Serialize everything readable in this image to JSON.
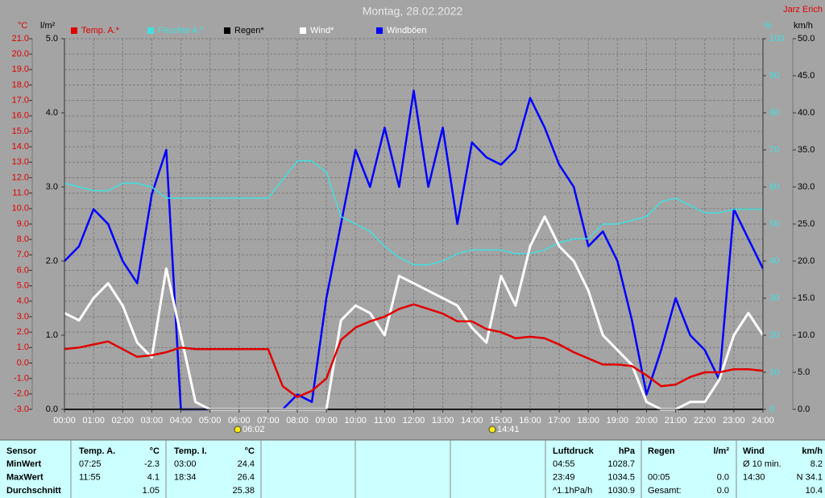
{
  "chart_data": {
    "type": "line",
    "title": "Montag, 28.02.2022",
    "author": "Jarz Erich",
    "units": {
      "y": "°C",
      "y2": "l/m²",
      "y3": "%",
      "y4": "km/h"
    },
    "annotations": [
      "06:02",
      "14:41"
    ],
    "grid": true,
    "x": [
      0,
      0.5,
      1,
      1.5,
      2,
      2.5,
      3,
      3.5,
      4,
      4.5,
      5,
      5.5,
      6,
      6.5,
      7,
      7.5,
      8,
      8.5,
      9,
      9.5,
      10,
      10.5,
      11,
      11.5,
      12,
      12.5,
      13,
      13.5,
      14,
      14.5,
      15,
      15.5,
      16,
      16.5,
      17,
      17.5,
      18,
      18.5,
      19,
      19.5,
      20,
      20.5,
      21,
      21.5,
      22,
      22.5,
      23,
      23.5,
      24
    ],
    "xlim": [
      0,
      24
    ],
    "xticks": [
      {
        "value": 0,
        "label": "00:00"
      },
      {
        "value": 1,
        "label": "01:00"
      },
      {
        "value": 2,
        "label": "02:00"
      },
      {
        "value": 3,
        "label": "03:00"
      },
      {
        "value": 4,
        "label": "04:00"
      },
      {
        "value": 5,
        "label": "05:00"
      },
      {
        "value": 6,
        "label": "06:00"
      },
      {
        "value": 7,
        "label": "07:00"
      },
      {
        "value": 8,
        "label": "08:00"
      },
      {
        "value": 9,
        "label": "09:00"
      },
      {
        "value": 10,
        "label": "10:00"
      },
      {
        "value": 11,
        "label": "11:00"
      },
      {
        "value": 12,
        "label": "12:00"
      },
      {
        "value": 13,
        "label": "13:00"
      },
      {
        "value": 14,
        "label": "14:00"
      },
      {
        "value": 15,
        "label": "15:00"
      },
      {
        "value": 16,
        "label": "16:00"
      },
      {
        "value": 17,
        "label": "17:00"
      },
      {
        "value": 18,
        "label": "18:00"
      },
      {
        "value": 19,
        "label": "19:00"
      },
      {
        "value": 20,
        "label": "20:00"
      },
      {
        "value": 21,
        "label": "21:00"
      },
      {
        "value": 22,
        "label": "22:00"
      },
      {
        "value": 23,
        "label": "23:00"
      },
      {
        "value": 24,
        "label": "24:00"
      }
    ],
    "ylim": [
      -3,
      21
    ],
    "yticks": [
      {
        "value": -3,
        "label": "-3.0"
      },
      {
        "value": -2,
        "label": "-2.0"
      },
      {
        "value": -1,
        "label": "-1.0"
      },
      {
        "value": 0,
        "label": "0.0"
      },
      {
        "value": 1,
        "label": "1.0"
      },
      {
        "value": 2,
        "label": "2.0"
      },
      {
        "value": 3,
        "label": "3.0"
      },
      {
        "value": 4,
        "label": "4.0"
      },
      {
        "value": 5,
        "label": "5.0"
      },
      {
        "value": 6,
        "label": "6.0"
      },
      {
        "value": 7,
        "label": "7.0"
      },
      {
        "value": 8,
        "label": "8.0"
      },
      {
        "value": 9,
        "label": "9.0"
      },
      {
        "value": 10,
        "label": "10.0"
      },
      {
        "value": 11,
        "label": "11.0"
      },
      {
        "value": 12,
        "label": "12.0"
      },
      {
        "value": 13,
        "label": "13.0"
      },
      {
        "value": 14,
        "label": "14.0"
      },
      {
        "value": 15,
        "label": "15.0"
      },
      {
        "value": 16,
        "label": "16.0"
      },
      {
        "value": 17,
        "label": "17.0"
      },
      {
        "value": 18,
        "label": "18.0"
      },
      {
        "value": 19,
        "label": "19.0"
      },
      {
        "value": 20,
        "label": "20.0"
      },
      {
        "value": 21,
        "label": "21.0"
      }
    ],
    "y2lim": [
      0,
      5
    ],
    "y2ticks": [
      {
        "value": 0,
        "label": "0.0"
      },
      {
        "value": 1,
        "label": "1.0"
      },
      {
        "value": 2,
        "label": "2.0"
      },
      {
        "value": 3,
        "label": "3.0"
      },
      {
        "value": 4,
        "label": "4.0"
      },
      {
        "value": 5,
        "label": "5.0"
      }
    ],
    "y3lim": [
      0,
      100
    ],
    "y3ticks": [
      0,
      10,
      20,
      30,
      40,
      50,
      60,
      70,
      80,
      90,
      100
    ],
    "y4lim": [
      0,
      50
    ],
    "y4ticks": [
      {
        "value": 0,
        "label": "0.0"
      },
      {
        "value": 5,
        "label": "5.0"
      },
      {
        "value": 10,
        "label": "10.0"
      },
      {
        "value": 15,
        "label": "15.0"
      },
      {
        "value": 20,
        "label": "20.0"
      },
      {
        "value": 25,
        "label": "25.0"
      },
      {
        "value": 30,
        "label": "30.0"
      },
      {
        "value": 35,
        "label": "35.0"
      },
      {
        "value": 40,
        "label": "40.0"
      },
      {
        "value": 45,
        "label": "45.0"
      },
      {
        "value": 50,
        "label": "50.0"
      }
    ],
    "series": [
      {
        "name": "Temp. A.*",
        "color": "#e00000",
        "axis": "y",
        "values": [
          0.9,
          1.0,
          1.2,
          1.4,
          0.9,
          0.4,
          0.5,
          0.7,
          1.0,
          0.9,
          0.9,
          0.9,
          0.9,
          0.9,
          0.9,
          -1.5,
          -2.2,
          -1.8,
          -1.0,
          1.5,
          2.3,
          2.7,
          3.0,
          3.5,
          3.8,
          3.5,
          3.2,
          2.7,
          2.7,
          2.2,
          2.0,
          1.6,
          1.7,
          1.6,
          1.2,
          0.7,
          0.3,
          -0.1,
          -0.1,
          -0.2,
          -0.8,
          -1.5,
          -1.4,
          -0.9,
          -0.6,
          -0.6,
          -0.4,
          -0.4,
          -0.5
        ]
      },
      {
        "name": "Feuchte A.*",
        "color": "#40e0e0",
        "axis": "y3",
        "values": [
          61,
          60,
          59,
          59,
          61,
          61,
          60,
          57,
          57,
          57,
          57,
          57,
          57,
          57,
          57,
          62,
          67,
          67,
          64,
          52,
          50,
          48,
          44,
          41,
          39,
          39,
          40,
          42,
          43,
          43,
          43,
          42,
          42,
          43,
          45,
          46,
          46,
          50,
          50,
          51,
          52,
          56,
          57,
          55,
          53,
          53,
          54,
          54,
          54
        ]
      },
      {
        "name": "Regen*",
        "color": "#000000",
        "axis": "y2",
        "values": [
          0,
          0,
          0,
          0,
          0,
          0,
          0,
          0,
          0,
          0,
          0,
          0,
          0,
          0,
          0,
          0,
          0,
          0,
          0,
          0,
          0,
          0,
          0,
          0,
          0,
          0,
          0,
          0,
          0,
          0,
          0,
          0,
          0,
          0,
          0,
          0,
          0,
          0,
          0,
          0,
          0,
          0,
          0,
          0,
          0,
          0,
          0,
          0,
          0
        ]
      },
      {
        "name": "Wind*",
        "color": "#ffffff",
        "axis": "y4",
        "values": [
          13,
          12,
          15,
          17,
          14,
          9,
          7,
          19,
          10,
          1,
          0,
          0,
          0,
          0,
          0,
          0,
          0,
          0,
          0,
          12,
          14,
          13,
          10,
          18,
          17,
          16,
          15,
          14,
          11,
          9,
          18,
          14,
          22,
          26,
          22,
          20,
          16,
          10,
          8,
          6,
          1,
          0,
          0,
          1,
          1,
          4,
          10,
          13,
          10
        ]
      },
      {
        "name": "Windböen",
        "color": "#0000ff",
        "axis": "y4",
        "values": [
          20,
          22,
          27,
          25,
          20,
          17,
          29,
          35,
          0,
          0,
          0,
          0,
          0,
          0,
          0,
          0,
          2,
          1,
          15,
          25,
          35,
          30,
          38,
          30,
          43,
          30,
          38,
          25,
          36,
          34,
          33,
          35,
          42,
          38,
          33,
          30,
          22,
          24,
          20,
          12,
          2,
          8,
          15,
          10,
          8,
          4,
          27,
          23,
          19
        ]
      }
    ]
  },
  "table": {
    "header": [
      "Sensor",
      "Temp. A.",
      "°C",
      "Temp. I.",
      "°C",
      "Luftdruck",
      "hPa",
      "Regen",
      "l/m²",
      "Wind",
      "km/h"
    ],
    "rows": [
      [
        "MinWert",
        "07:25",
        "-2.3",
        "03:00",
        "24.4",
        "04:55",
        "1028.7",
        null,
        null,
        "Ø 10 min.",
        "8.2"
      ],
      [
        "MaxWert",
        "11:55",
        "4.1",
        "18:34",
        "26.4",
        "23:49",
        "1034.5",
        "00:05",
        "0.0",
        "14:30",
        "N 34.1"
      ],
      [
        "Durchschnitt",
        null,
        "1.05",
        null,
        "25.38",
        "^1.1hPa/h",
        "1030.9",
        "Gesamt:",
        "0.0",
        null,
        "10.4"
      ]
    ]
  }
}
